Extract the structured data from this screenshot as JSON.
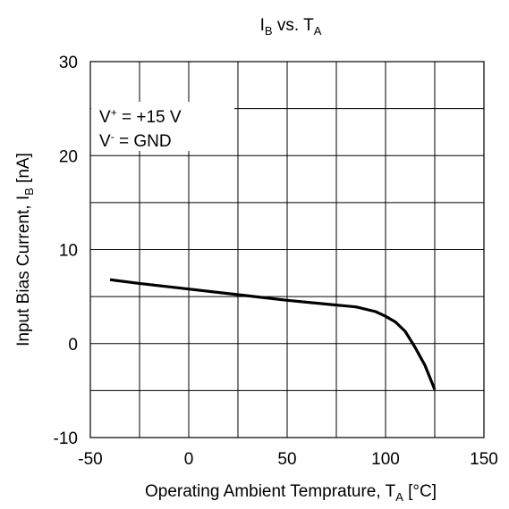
{
  "chart_data": {
    "type": "line",
    "title": {
      "main": "I",
      "main_sub": "B",
      "mid": " vs. T",
      "end_sub": "A"
    },
    "xlabel": {
      "main": "Operating Ambient Temprature, T",
      "sub": "A",
      "end": " [°C]"
    },
    "ylabel": {
      "main": "Input Bias Current, I",
      "sub": "B",
      "end": " [nA]"
    },
    "xlim": [
      -50,
      150
    ],
    "ylim": [
      -10,
      30
    ],
    "x_ticks": [
      "-50",
      "0",
      "50",
      "100",
      "150"
    ],
    "y_ticks": [
      "-10",
      "0",
      "10",
      "20",
      "30"
    ],
    "grid": true,
    "annotations": [
      {
        "base": "V",
        "sup": "+",
        "rest": " = +15 V"
      },
      {
        "base": "V",
        "sup": "-",
        "rest": " = GND"
      }
    ],
    "series": [
      {
        "color": "#000000",
        "x": [
          -40,
          -25,
          0,
          25,
          50,
          75,
          85,
          95,
          100,
          105,
          110,
          115,
          120,
          125
        ],
        "y": [
          6.8,
          6.4,
          5.8,
          5.2,
          4.6,
          4.1,
          3.9,
          3.4,
          2.9,
          2.3,
          1.3,
          -0.4,
          -2.3,
          -4.9
        ]
      }
    ]
  }
}
